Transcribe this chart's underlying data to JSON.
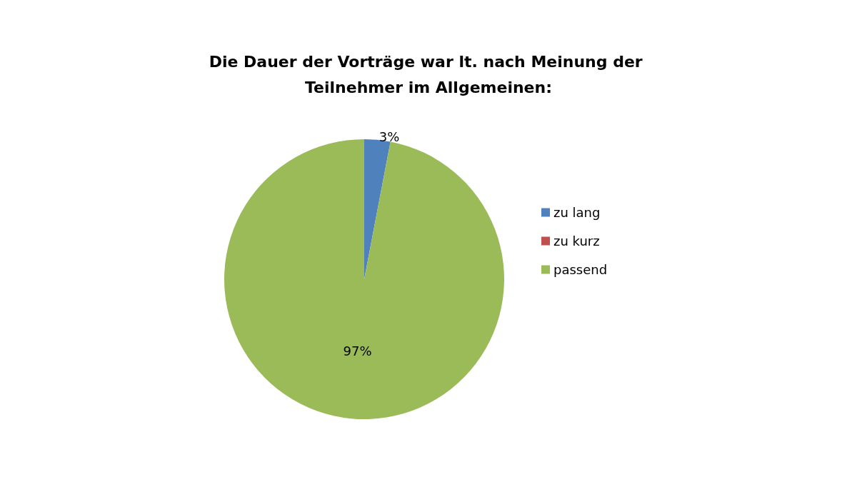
{
  "chart_data": {
    "type": "pie",
    "title": "Die Dauer der Vorträge war lt. nach Meinung der Teilnehmer im Allgemeinen:",
    "categories": [
      "zu lang",
      "zu kurz",
      "passend"
    ],
    "values": [
      3,
      0,
      97
    ],
    "colors": [
      "#4f81bd",
      "#c0504d",
      "#9bbb59"
    ],
    "value_labels": [
      "3%",
      null,
      "97%"
    ],
    "legend": "right"
  }
}
